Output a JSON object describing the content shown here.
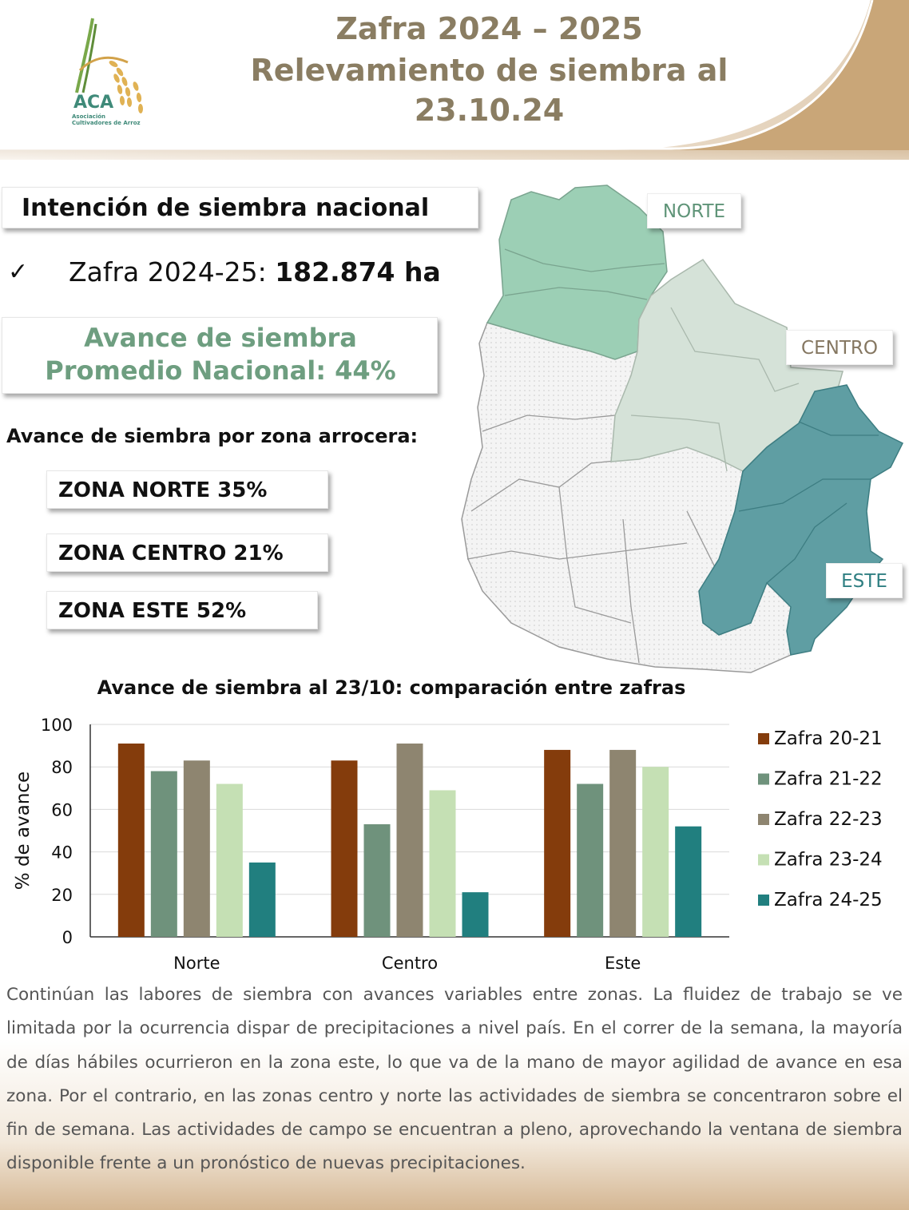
{
  "header": {
    "title_line1": "Zafra 2024 – 2025",
    "title_line2": "Relevamiento de siembra al",
    "title_line3": "23.10.24",
    "logo_acronym": "ACA",
    "logo_name_line1": "Asociación",
    "logo_name_line2": "Cultivadores de Arroz",
    "colors": {
      "title": "#8a7d62",
      "swoosh": "#c9a678",
      "logo": "#3f8a79"
    }
  },
  "intent": {
    "title": "Intención de siembra nacional",
    "check_icon": "✓",
    "zafra_label": "Zafra 2024-25: ",
    "zafra_value": "182.874 ha"
  },
  "avance": {
    "line1": "Avance de siembra",
    "line2": "Promedio Nacional: 44%"
  },
  "zones": {
    "heading": "Avance de siembra por zona arrocera:",
    "items": [
      {
        "label": "ZONA NORTE 35%"
      },
      {
        "label": "ZONA CENTRO 21%"
      },
      {
        "label": "ZONA ESTE 52%"
      }
    ]
  },
  "map": {
    "labels": {
      "norte": "NORTE",
      "centro": "CENTRO",
      "este": "ESTE"
    },
    "colors": {
      "norte": "#9ccfb5",
      "centro": "#d5e2d8",
      "este": "#5f9ea3",
      "other": "#f1f1f1"
    }
  },
  "chart_data": {
    "type": "bar",
    "title": "Avance de siembra al 23/10: comparación entre zafras",
    "ylabel": "% de avance",
    "xlabel": "",
    "ylim": [
      0,
      100
    ],
    "yticks": [
      0,
      20,
      40,
      60,
      80,
      100
    ],
    "grid": true,
    "legend_position": "right",
    "categories": [
      "Norte",
      "Centro",
      "Este"
    ],
    "series": [
      {
        "name": "Zafra 20-21",
        "color": "#843c0c",
        "values": [
          91,
          83,
          88
        ]
      },
      {
        "name": "Zafra 21-22",
        "color": "#6f927c",
        "values": [
          78,
          53,
          72
        ]
      },
      {
        "name": "Zafra 22-23",
        "color": "#8e8570",
        "values": [
          83,
          91,
          88
        ]
      },
      {
        "name": "Zafra 23-24",
        "color": "#c5e0b4",
        "values": [
          72,
          69,
          80
        ]
      },
      {
        "name": "Zafra 24-25",
        "color": "#217f7f",
        "values": [
          35,
          21,
          52
        ]
      }
    ]
  },
  "paragraph": "Continúan las labores de siembra con avances variables entre zonas. La fluidez de trabajo se ve limitada por la ocurrencia dispar de precipitaciones a nivel país. En el correr de la semana, la mayoría de días hábiles ocurrieron en la zona este, lo que va de la mano de mayor agilidad de avance en esa zona. Por el contrario, en las zonas centro y norte las actividades de siembra se concentraron sobre el fin de semana. Las actividades de campo se encuentran a pleno, aprovechando la ventana de siembra disponible frente a un pronóstico de nuevas precipitaciones."
}
